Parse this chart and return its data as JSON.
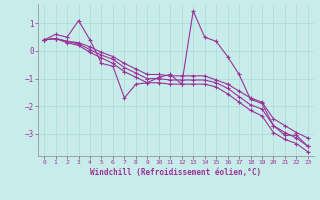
{
  "xlabel": "Windchill (Refroidissement éolien,°C)",
  "background_color": "#c8ecea",
  "line_color": "#993399",
  "xlim": [
    -0.5,
    23.5
  ],
  "ylim": [
    -3.8,
    1.7
  ],
  "yticks": [
    -3,
    -2,
    -1,
    0,
    1
  ],
  "xticks": [
    0,
    1,
    2,
    3,
    4,
    5,
    6,
    7,
    8,
    9,
    10,
    11,
    12,
    13,
    14,
    15,
    16,
    17,
    18,
    19,
    20,
    21,
    22,
    23
  ],
  "series_jagged": [
    0.4,
    0.6,
    0.5,
    1.1,
    0.4,
    -0.45,
    -0.55,
    -1.7,
    -1.2,
    -1.15,
    -0.95,
    -0.85,
    -1.2,
    1.45,
    0.5,
    0.35,
    -0.2,
    -0.85,
    -1.75,
    -1.9,
    -2.7,
    -3.05,
    -3.05,
    -3.45
  ],
  "series_smooth": [
    [
      0.4,
      0.45,
      0.35,
      0.3,
      0.15,
      -0.05,
      -0.2,
      -0.45,
      -0.65,
      -0.85,
      -0.85,
      -0.9,
      -0.9,
      -0.9,
      -0.9,
      -1.05,
      -1.2,
      -1.45,
      -1.7,
      -1.85,
      -2.45,
      -2.7,
      -2.95,
      -3.15
    ],
    [
      0.4,
      0.45,
      0.35,
      0.25,
      0.05,
      -0.15,
      -0.3,
      -0.6,
      -0.8,
      -1.0,
      -1.0,
      -1.05,
      -1.05,
      -1.05,
      -1.05,
      -1.15,
      -1.35,
      -1.65,
      -1.95,
      -2.1,
      -2.7,
      -2.95,
      -3.15,
      -3.45
    ],
    [
      0.4,
      0.45,
      0.3,
      0.2,
      -0.05,
      -0.25,
      -0.45,
      -0.75,
      -0.95,
      -1.15,
      -1.15,
      -1.2,
      -1.2,
      -1.2,
      -1.2,
      -1.3,
      -1.55,
      -1.85,
      -2.15,
      -2.35,
      -2.95,
      -3.2,
      -3.35,
      -3.65
    ]
  ],
  "markersize_jagged": 2.5,
  "markersize_smooth": 2.5,
  "linewidth": 0.8
}
